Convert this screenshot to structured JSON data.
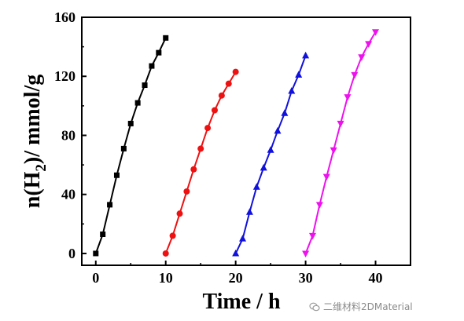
{
  "chart_data": {
    "type": "line",
    "xlabel": "Time / h",
    "ylabel_main": "n(H",
    "ylabel_sub": "2",
    "ylabel_tail": ")/ mmol/g",
    "xlim": [
      -2,
      45
    ],
    "ylim": [
      -8,
      160
    ],
    "xticks": [
      0,
      10,
      20,
      30,
      40
    ],
    "yticks": [
      0,
      40,
      80,
      120,
      160
    ],
    "grid": false,
    "series": [
      {
        "color": "#000000",
        "marker": "square",
        "x": [
          0,
          1,
          2,
          3,
          4,
          5,
          6,
          7,
          8,
          9,
          10
        ],
        "y": [
          0,
          13,
          33,
          53,
          71,
          88,
          102,
          114,
          127,
          136,
          146
        ]
      },
      {
        "color": "#ee1111",
        "marker": "circle",
        "x": [
          10,
          11,
          12,
          13,
          14,
          15,
          16,
          17,
          18,
          19,
          20
        ],
        "y": [
          0,
          12,
          27,
          42,
          57,
          71,
          85,
          97,
          107,
          115,
          123
        ]
      },
      {
        "color": "#1111dd",
        "marker": "triangle-up",
        "x": [
          20,
          21,
          22,
          23,
          24,
          25,
          26,
          27,
          28,
          29,
          30
        ],
        "y": [
          0,
          10,
          28,
          45,
          58,
          70,
          83,
          95,
          110,
          121,
          134
        ]
      },
      {
        "color": "#ee11ee",
        "marker": "triangle-down",
        "x": [
          30,
          31,
          32,
          33,
          34,
          35,
          36,
          37,
          38,
          39,
          40
        ],
        "y": [
          0,
          12,
          33,
          52,
          70,
          88,
          106,
          121,
          133,
          142,
          150
        ]
      }
    ]
  },
  "watermark": {
    "text": "二维材料2DMaterial"
  }
}
